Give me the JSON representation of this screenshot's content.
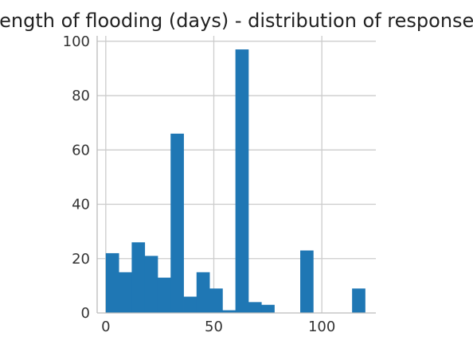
{
  "chart_data": {
    "type": "bar",
    "title": "Length of flooding (days) - distribution of responses",
    "xlabel": "",
    "ylabel": "",
    "xlim": [
      -4,
      125
    ],
    "ylim": [
      0,
      102
    ],
    "xticks": [
      0,
      50,
      100
    ],
    "yticks": [
      0,
      20,
      40,
      60,
      80,
      100
    ],
    "grid": true,
    "bar_color": "#1f77b4",
    "bins": [
      {
        "x0": 0,
        "x1": 6,
        "count": 22
      },
      {
        "x0": 6,
        "x1": 12,
        "count": 15
      },
      {
        "x0": 12,
        "x1": 18,
        "count": 26
      },
      {
        "x0": 18,
        "x1": 24,
        "count": 21
      },
      {
        "x0": 24,
        "x1": 30,
        "count": 13
      },
      {
        "x0": 30,
        "x1": 36,
        "count": 66
      },
      {
        "x0": 36,
        "x1": 42,
        "count": 6
      },
      {
        "x0": 42,
        "x1": 48,
        "count": 15
      },
      {
        "x0": 48,
        "x1": 54,
        "count": 9
      },
      {
        "x0": 54,
        "x1": 60,
        "count": 1
      },
      {
        "x0": 60,
        "x1": 66,
        "count": 97
      },
      {
        "x0": 66,
        "x1": 72,
        "count": 4
      },
      {
        "x0": 72,
        "x1": 78,
        "count": 3
      },
      {
        "x0": 78,
        "x1": 84,
        "count": 0
      },
      {
        "x0": 84,
        "x1": 90,
        "count": 0
      },
      {
        "x0": 90,
        "x1": 96,
        "count": 23
      },
      {
        "x0": 96,
        "x1": 102,
        "count": 0
      },
      {
        "x0": 102,
        "x1": 108,
        "count": 0
      },
      {
        "x0": 108,
        "x1": 114,
        "count": 0
      },
      {
        "x0": 114,
        "x1": 120,
        "count": 9
      }
    ]
  }
}
